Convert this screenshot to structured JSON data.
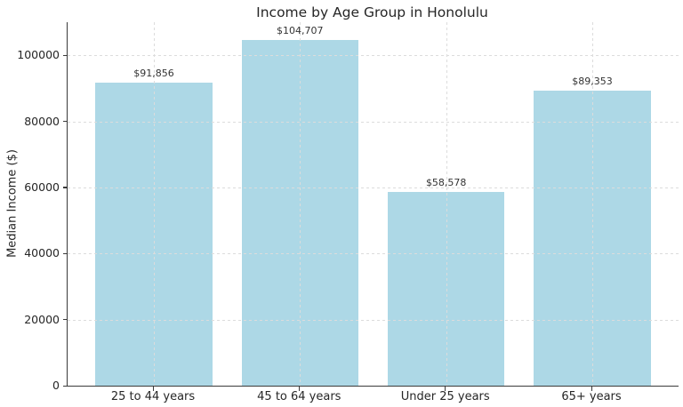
{
  "chart_data": {
    "type": "bar",
    "title": "Income by Age Group in Honolulu",
    "xlabel": "",
    "ylabel": "Median Income ($)",
    "categories": [
      "25 to 44 years",
      "45 to 64 years",
      "Under 25 years",
      "65+ years"
    ],
    "values": [
      91856,
      104707,
      58578,
      89353
    ],
    "value_labels": [
      "$91,856",
      "$104,707",
      "$58,578",
      "$89,353"
    ],
    "ylim": [
      0,
      110000
    ],
    "yticks": [
      0,
      20000,
      40000,
      60000,
      80000,
      100000
    ],
    "ytick_labels": [
      "0",
      "20000",
      "40000",
      "60000",
      "80000",
      "100000"
    ],
    "grid": "both-dashed-over-bars",
    "legend": "none",
    "colors": {
      "bar": "#ADD8E6",
      "grid": "#dcdcdc",
      "axis": "#3a3a3a",
      "text": "#262626",
      "background": "#ffffff"
    }
  }
}
